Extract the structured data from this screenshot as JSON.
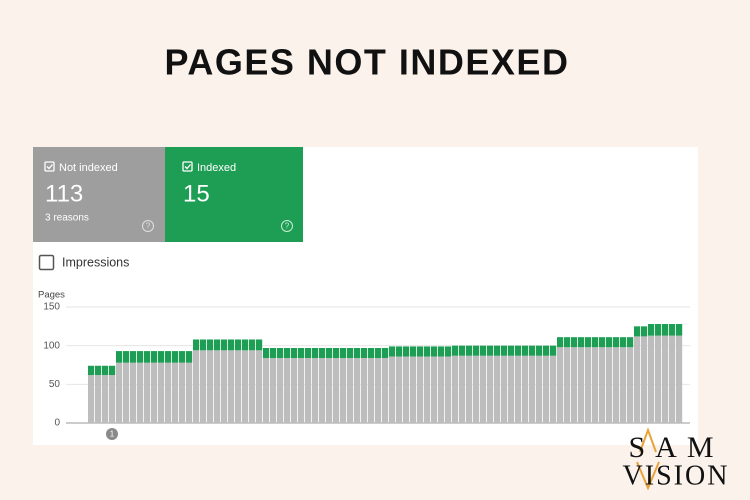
{
  "header": {
    "title": "PAGES NOT INDEXED"
  },
  "cards": [
    {
      "value": 113,
      "note": "3 reasons"
    },
    {
      "value": 15
    }
  ],
  "help_icon": "?",
  "checkbox": {
    "label": "Impressions"
  },
  "logo": {
    "line1": "SAM",
    "line2": "VISION"
  },
  "chart_data": {
    "type": "bar",
    "stacked": true,
    "y_label": "Pages",
    "ylim": [
      0,
      150
    ],
    "yticks": [
      0,
      50,
      100,
      150
    ],
    "grid": true,
    "annotations": [
      "1"
    ],
    "series": [
      {
        "name": "Not indexed",
        "color": "#bdbdbd",
        "values": [
          62,
          62,
          62,
          62,
          78,
          78,
          78,
          78,
          78,
          78,
          78,
          78,
          78,
          78,
          78,
          94,
          94,
          94,
          94,
          94,
          94,
          94,
          94,
          94,
          94,
          84,
          84,
          84,
          84,
          84,
          84,
          84,
          84,
          84,
          84,
          84,
          84,
          84,
          84,
          84,
          84,
          84,
          84,
          86,
          86,
          86,
          86,
          86,
          86,
          86,
          86,
          86,
          87,
          87,
          87,
          87,
          87,
          87,
          87,
          87,
          87,
          87,
          87,
          87,
          87,
          87,
          87,
          98,
          98,
          98,
          98,
          98,
          98,
          98,
          98,
          98,
          98,
          98,
          112,
          112,
          113,
          113,
          113,
          113,
          113
        ]
      },
      {
        "name": "Indexed",
        "color": "#1e9e54",
        "values": [
          12,
          12,
          12,
          12,
          15,
          15,
          15,
          15,
          15,
          15,
          15,
          15,
          15,
          15,
          15,
          14,
          14,
          14,
          14,
          14,
          14,
          14,
          14,
          14,
          14,
          13,
          13,
          13,
          13,
          13,
          13,
          13,
          13,
          13,
          13,
          13,
          13,
          13,
          13,
          13,
          13,
          13,
          13,
          13,
          13,
          13,
          13,
          13,
          13,
          13,
          13,
          13,
          13,
          13,
          13,
          13,
          13,
          13,
          13,
          13,
          13,
          13,
          13,
          13,
          13,
          13,
          13,
          13,
          13,
          13,
          13,
          13,
          13,
          13,
          13,
          13,
          13,
          13,
          13,
          13,
          15,
          15,
          15,
          15,
          15
        ]
      }
    ]
  }
}
